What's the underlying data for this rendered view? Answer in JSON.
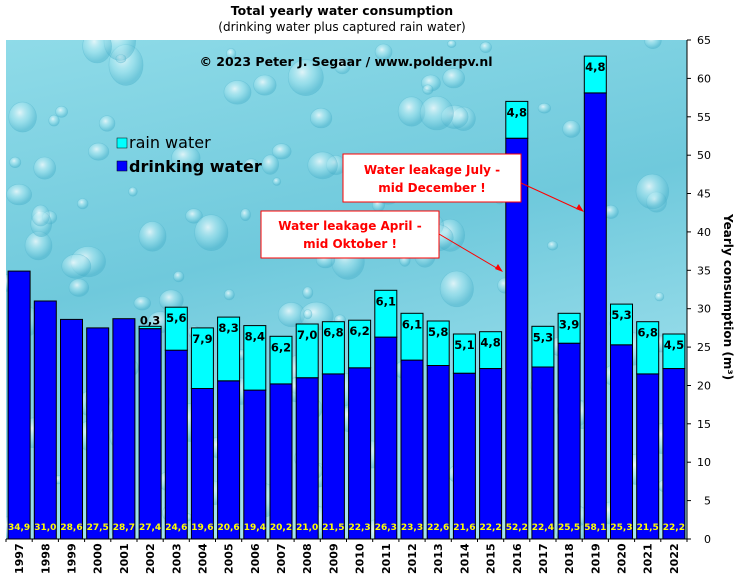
{
  "chart_data": {
    "type": "bar",
    "stacked": true,
    "title": "Total yearly water consumption",
    "subtitle": "(drinking  water plus captured rain  water)",
    "copyright": "© 2023  Peter J.  Segaar / www.polderpv.nl",
    "ylabel": "Yearly consumption (m³)",
    "ylim": [
      0,
      65
    ],
    "ytick_step": 5,
    "grid": false,
    "legend_placement": "top-left",
    "categories": [
      "1997",
      "1998",
      "1999",
      "2000",
      "2001",
      "2002",
      "2003",
      "2004",
      "2005",
      "2006",
      "2007",
      "2008",
      "2009",
      "2010",
      "2011",
      "2012",
      "2013",
      "2014",
      "2015",
      "2016",
      "2017",
      "2018",
      "2019",
      "2020",
      "2021",
      "2022"
    ],
    "series": [
      {
        "name": "drinking water",
        "color": "#0000ff",
        "values": [
          34.9,
          31.0,
          28.6,
          27.5,
          28.7,
          27.4,
          24.6,
          19.6,
          20.6,
          19.4,
          20.2,
          21.0,
          21.5,
          22.3,
          26.3,
          23.3,
          22.6,
          21.6,
          22.2,
          52.2,
          22.4,
          25.5,
          58.1,
          25.3,
          21.5,
          22.2
        ],
        "labels": [
          "34,9",
          "31,0",
          "28,6",
          "27,5",
          "28,7",
          "27,4",
          "24,6",
          "19,6",
          "20,6",
          "19,4",
          "20,2",
          "21,0",
          "21,5",
          "22,3",
          "26,3",
          "23,3",
          "22,6",
          "21,6",
          "22,2",
          "52,2",
          "22,4",
          "25,5",
          "58,1",
          "25,3",
          "21,5",
          "22,2"
        ]
      },
      {
        "name": "rain water",
        "color": "#00ffff",
        "values": [
          0,
          0,
          0,
          0,
          0,
          0.3,
          5.6,
          7.9,
          8.3,
          8.4,
          6.2,
          7.0,
          6.8,
          6.2,
          6.1,
          6.1,
          5.8,
          5.1,
          4.8,
          4.8,
          5.3,
          3.9,
          4.8,
          5.3,
          6.8,
          4.5
        ],
        "labels": [
          "",
          "",
          "",
          "",
          "",
          "0,3",
          "5,6",
          "7,9",
          "8,3",
          "8,4",
          "6,2",
          "7,0",
          "6,8",
          "6,2",
          "6,1",
          "6,1",
          "5,8",
          "5,1",
          "4,8",
          "4,8",
          "5,3",
          "3,9",
          "4,8",
          "5,3",
          "6,8",
          "4,5"
        ]
      }
    ],
    "annotations": [
      {
        "line1": "Water leakage April -",
        "line2": "mid Oktober !",
        "target": "2016"
      },
      {
        "line1": "Water leakage July -",
        "line2": "mid December !",
        "target": "2019"
      }
    ],
    "colors": {
      "annotation_text": "#ff0000",
      "drinking_label": "#ffff00",
      "background": "#7fd4e3"
    }
  }
}
